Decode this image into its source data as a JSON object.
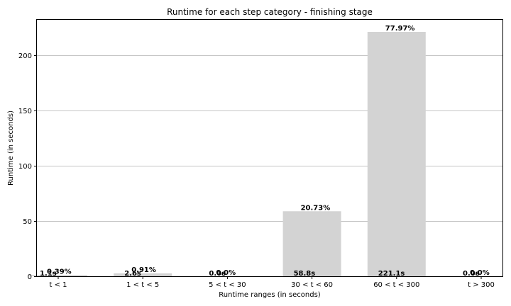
{
  "chart_data": {
    "type": "bar",
    "title": "Runtime for each step category - finishing stage",
    "xlabel": "Runtime ranges (in seconds)",
    "ylabel": "Runtime (in seconds)",
    "categories": [
      "t < 1",
      "1 < t < 5",
      "5 < t < 30",
      "30 < t < 60",
      "60 < t < 300",
      "t > 300"
    ],
    "values": [
      1.1,
      2.6,
      0.0,
      58.8,
      221.1,
      0.0
    ],
    "value_labels": [
      "1.1s",
      "2.6s",
      "0.0s",
      "58.8s",
      "221.1s",
      "0.0s"
    ],
    "percent_labels": [
      "0.39%",
      "0.91%",
      "0.0%",
      "20.73%",
      "77.97%",
      "0.0%"
    ],
    "ylim": [
      0,
      232
    ],
    "yticks": [
      0,
      50,
      100,
      150,
      200
    ],
    "grid": "y",
    "bar_color": "#d3d3d3"
  }
}
